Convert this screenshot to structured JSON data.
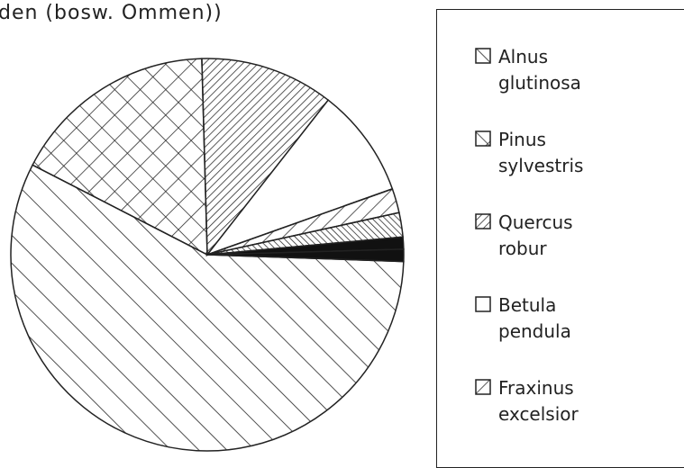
{
  "chart_data": {
    "type": "pie",
    "title": "den (bosw. Ommen))",
    "categories": [
      "Alnus glutinosa",
      "Pinus sylvestris",
      "Quercus robur",
      "Betula pendula",
      "Fraxinus excelsior",
      null,
      null,
      null
    ],
    "values": [
      57,
      17,
      11,
      9,
      2,
      2,
      1,
      1
    ],
    "patterns": [
      "diag-right",
      "cross",
      "diag-left-dense",
      "blank",
      "diag-left",
      "diag-right-dense",
      "solid",
      "solid"
    ],
    "start_angle": -2,
    "direction": "clockwise"
  }
}
